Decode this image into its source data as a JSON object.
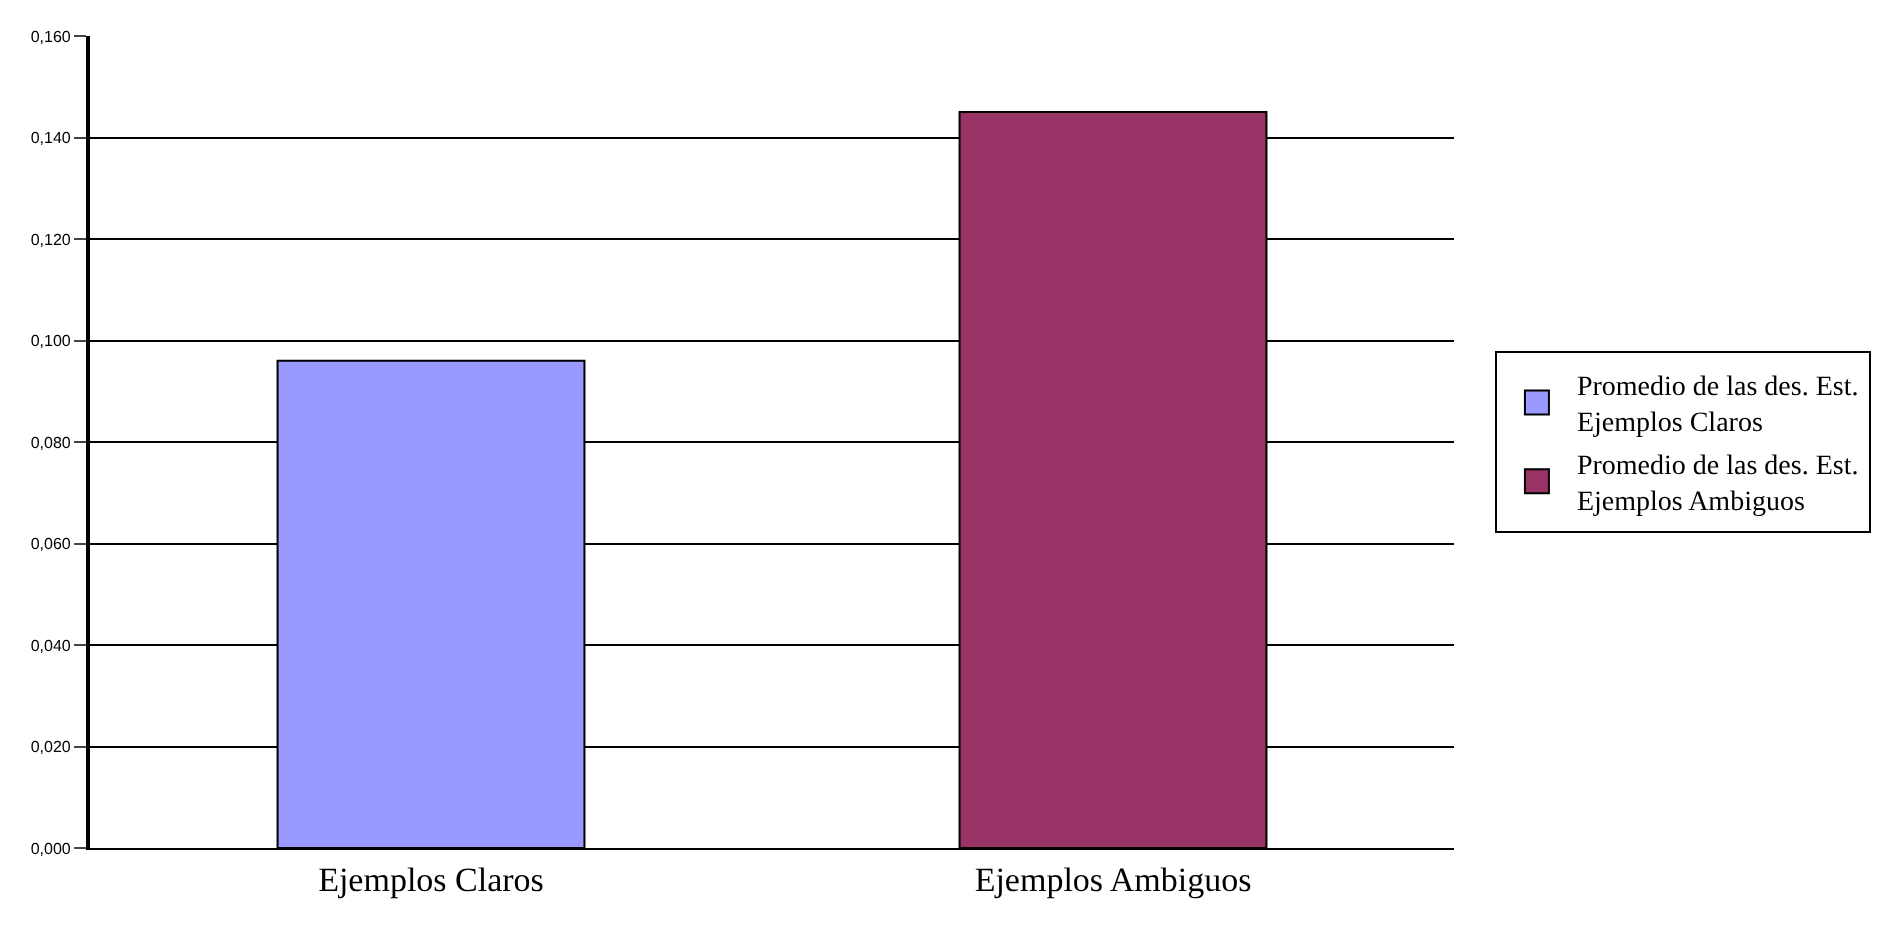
{
  "chart_data": {
    "type": "bar",
    "categories": [
      "Ejemplos Claros",
      "Ejemplos Ambiguos"
    ],
    "series": [
      {
        "name": "Promedio de las des. Est. Ejemplos Claros",
        "color": "#9999ff",
        "values": [
          0.096,
          null
        ]
      },
      {
        "name": "Promedio de las des. Est. Ejemplos Ambiguos",
        "color": "#993366",
        "values": [
          null,
          0.145
        ]
      }
    ],
    "ylim": [
      0,
      0.16
    ],
    "yticks": [
      {
        "value": 0,
        "label": "0,000"
      },
      {
        "value": 0.02,
        "label": "0,020"
      },
      {
        "value": 0.04,
        "label": "0,040"
      },
      {
        "value": 0.06,
        "label": "0,060"
      },
      {
        "value": 0.08,
        "label": "0,080"
      },
      {
        "value": 0.1,
        "label": "0,100"
      },
      {
        "value": 0.12,
        "label": "0,120"
      },
      {
        "value": 0.14,
        "label": "0,140"
      },
      {
        "value": 0.16,
        "label": "0,160"
      }
    ],
    "grid": "y",
    "legend": "right"
  }
}
